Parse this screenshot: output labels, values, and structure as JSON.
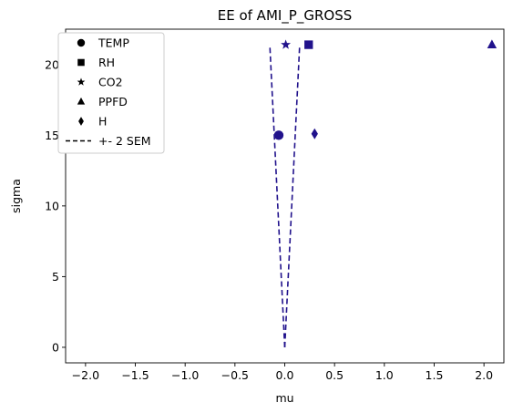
{
  "chart_data": {
    "type": "scatter",
    "title": "EE of AMI_P_GROSS",
    "xlabel": "mu",
    "ylabel": "sigma",
    "xlim": [
      -2.2,
      2.2
    ],
    "ylim": [
      -1.1,
      22.5
    ],
    "x_ticks": [
      -2.0,
      -1.5,
      -1.0,
      -0.5,
      0.0,
      0.5,
      1.0,
      1.5,
      2.0
    ],
    "x_tick_labels": [
      "−2.0",
      "−1.5",
      "−1.0",
      "−0.5",
      "0.0",
      "0.5",
      "1.0",
      "1.5",
      "2.0"
    ],
    "y_ticks": [
      0,
      5,
      10,
      15,
      20
    ],
    "y_tick_labels": [
      "0",
      "5",
      "10",
      "15",
      "20"
    ],
    "grid": false,
    "legend_position": "top-left",
    "marker_color": "#21128c",
    "series": [
      {
        "name": "TEMP",
        "marker": "circle",
        "x": -0.06,
        "y": 15.0
      },
      {
        "name": "RH",
        "marker": "square",
        "x": 0.24,
        "y": 21.4
      },
      {
        "name": "CO2",
        "marker": "star",
        "x": 0.01,
        "y": 21.4
      },
      {
        "name": "PPFD",
        "marker": "triangle",
        "x": 2.08,
        "y": 21.4
      },
      {
        "name": "H",
        "marker": "diamond",
        "x": 0.3,
        "y": 15.1
      }
    ],
    "sem_band": {
      "name": "+- 2 SEM",
      "style": "dashed",
      "left": [
        [
          0.0,
          0.0
        ],
        [
          -0.15,
          21.4
        ]
      ],
      "right": [
        [
          0.0,
          0.0
        ],
        [
          0.15,
          21.4
        ]
      ]
    }
  }
}
